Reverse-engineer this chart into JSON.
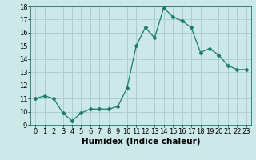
{
  "title": "",
  "xlabel": "Humidex (Indice chaleur)",
  "x": [
    0,
    1,
    2,
    3,
    4,
    5,
    6,
    7,
    8,
    9,
    10,
    11,
    12,
    13,
    14,
    15,
    16,
    17,
    18,
    19,
    20,
    21,
    22,
    23
  ],
  "y": [
    11.0,
    11.2,
    11.0,
    9.9,
    9.3,
    9.9,
    10.2,
    10.2,
    10.2,
    10.4,
    11.8,
    15.0,
    16.4,
    15.6,
    17.9,
    17.2,
    16.9,
    16.4,
    14.5,
    14.8,
    14.3,
    13.5,
    13.2,
    13.2
  ],
  "line_color": "#1a7a6e",
  "marker": "D",
  "marker_size": 2.5,
  "bg_color": "#cce8e8",
  "grid_color": "#aacece",
  "ylim": [
    9,
    18
  ],
  "xlim": [
    -0.5,
    23.5
  ],
  "yticks": [
    9,
    10,
    11,
    12,
    13,
    14,
    15,
    16,
    17,
    18
  ],
  "xticks": [
    0,
    1,
    2,
    3,
    4,
    5,
    6,
    7,
    8,
    9,
    10,
    11,
    12,
    13,
    14,
    15,
    16,
    17,
    18,
    19,
    20,
    21,
    22,
    23
  ],
  "tick_fontsize": 6,
  "label_fontsize": 7.5
}
